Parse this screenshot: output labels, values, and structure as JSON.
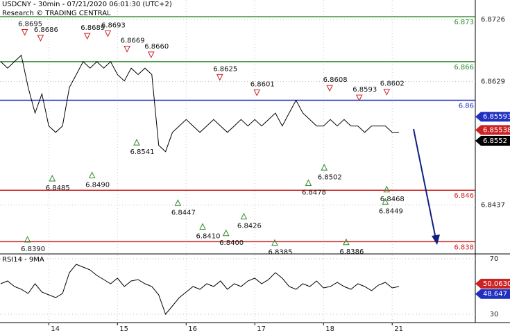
{
  "chart_data": {
    "type": "line",
    "title": "USDCNY - 30min - 07/21/2020 06:01:30 (UTC+2)",
    "subtitle": "Research © TRADING CENTRAL",
    "x": [
      0.3,
      0.4,
      0.5,
      0.6,
      0.7,
      0.8,
      0.9,
      1.0,
      1.1,
      1.2,
      1.3,
      1.4,
      1.5,
      1.6,
      1.7,
      1.8,
      1.9,
      2.0,
      2.1,
      2.2,
      2.3,
      2.4,
      2.5,
      2.6,
      2.7,
      2.8,
      2.9,
      3.0,
      3.1,
      3.2,
      3.3,
      3.4,
      3.5,
      3.6,
      3.7,
      3.8,
      3.9,
      4.0,
      4.1,
      4.2,
      4.3,
      4.4,
      4.5,
      4.6,
      4.7,
      4.8,
      4.9,
      5.0,
      5.1,
      5.2,
      5.3,
      5.4,
      5.5,
      5.6,
      5.7,
      5.8,
      5.9,
      6.0,
      6.1
    ],
    "values": [
      6.866,
      6.865,
      6.866,
      6.867,
      6.862,
      6.858,
      6.861,
      6.856,
      6.855,
      6.856,
      6.862,
      6.864,
      6.866,
      6.865,
      6.866,
      6.865,
      6.866,
      6.864,
      6.863,
      6.865,
      6.864,
      6.865,
      6.864,
      6.853,
      6.852,
      6.855,
      6.856,
      6.857,
      6.856,
      6.855,
      6.856,
      6.857,
      6.856,
      6.855,
      6.856,
      6.857,
      6.856,
      6.857,
      6.856,
      6.857,
      6.858,
      6.856,
      6.858,
      6.86,
      6.858,
      6.857,
      6.856,
      6.856,
      6.857,
      6.856,
      6.857,
      6.856,
      6.856,
      6.855,
      6.856,
      6.856,
      6.856,
      6.855,
      6.855
    ],
    "color": "#000000",
    "xlim": [
      0.29,
      7.21
    ],
    "xticks": [
      {
        "value": 1,
        "label": "14"
      },
      {
        "value": 2,
        "label": "15"
      },
      {
        "value": 3,
        "label": "16"
      },
      {
        "value": 4,
        "label": "17"
      },
      {
        "value": 5,
        "label": "18"
      },
      {
        "value": 6,
        "label": "21"
      }
    ],
    "ylim": [
      6.8362,
      6.8756
    ],
    "yticks": [
      6.8437,
      6.8629,
      6.8726
    ],
    "grid": true,
    "levels": [
      {
        "value": 6.873,
        "color": "#2e8b2e"
      },
      {
        "value": 6.866,
        "color": "#2e8b2e"
      },
      {
        "value": 6.86,
        "color": "#1f2fbf"
      },
      {
        "value": 6.846,
        "color": "#cc2222"
      },
      {
        "value": 6.838,
        "color": "#cc2222"
      }
    ],
    "price_labels": [
      {
        "value": 6.85593,
        "color": "#1f2fbf"
      },
      {
        "value": 6.85538,
        "color": "#cc2222"
      },
      {
        "value": 6.8552,
        "color": "#000000"
      }
    ],
    "annotations": [
      {
        "x": 0.65,
        "value": 6.8695,
        "marker": "down"
      },
      {
        "x": 0.88,
        "value": 6.8686,
        "marker": "down"
      },
      {
        "x": 1.56,
        "value": 6.8689,
        "marker": "down"
      },
      {
        "x": 1.86,
        "value": 6.8693,
        "marker": "down"
      },
      {
        "x": 2.14,
        "value": 6.8669,
        "marker": "down"
      },
      {
        "x": 2.49,
        "value": 6.866,
        "label": "6.8660",
        "marker": "down"
      },
      {
        "x": 3.49,
        "value": 6.8625,
        "marker": "down"
      },
      {
        "x": 4.03,
        "value": 6.8601,
        "marker": "down"
      },
      {
        "x": 5.09,
        "value": 6.8608,
        "marker": "down"
      },
      {
        "x": 5.52,
        "value": 6.8593,
        "marker": "down"
      },
      {
        "x": 5.92,
        "value": 6.8602,
        "marker": "down"
      },
      {
        "x": 0.69,
        "value": 6.839,
        "label": "6.8390",
        "marker": "up"
      },
      {
        "x": 1.05,
        "value": 6.8485,
        "marker": "up"
      },
      {
        "x": 1.63,
        "value": 6.849,
        "label": "6.8490",
        "marker": "up"
      },
      {
        "x": 2.28,
        "value": 6.8541,
        "marker": "up"
      },
      {
        "x": 2.88,
        "value": 6.8447,
        "marker": "up"
      },
      {
        "x": 3.24,
        "value": 6.841,
        "label": "6.8410",
        "marker": "up"
      },
      {
        "x": 3.58,
        "value": 6.84,
        "label": "6.8400",
        "marker": "up"
      },
      {
        "x": 3.84,
        "value": 6.8426,
        "marker": "up"
      },
      {
        "x": 4.29,
        "value": 6.8385,
        "marker": "up"
      },
      {
        "x": 4.78,
        "value": 6.8478,
        "marker": "up"
      },
      {
        "x": 5.01,
        "value": 6.8502,
        "marker": "up"
      },
      {
        "x": 5.33,
        "value": 6.8386,
        "marker": "up"
      },
      {
        "x": 5.92,
        "value": 6.8468,
        "marker": "up"
      },
      {
        "x": 5.9,
        "value": 6.8449,
        "marker": "up"
      }
    ],
    "rsi": {
      "title": "RSI14 - 9MA",
      "ylim": [
        24,
        72.5
      ],
      "yticks": [
        30,
        70
      ],
      "color": "#000000",
      "values": [
        52,
        54,
        50,
        48,
        45,
        52,
        46,
        44,
        42,
        45,
        60,
        66,
        64,
        62,
        58,
        55,
        52,
        56,
        50,
        54,
        55,
        52,
        50,
        44,
        30,
        36,
        42,
        46,
        50,
        48,
        52,
        50,
        54,
        48,
        52,
        50,
        54,
        56,
        52,
        55,
        60,
        56,
        50,
        48,
        52,
        50,
        54,
        49,
        50,
        53,
        50,
        48,
        52,
        50,
        47,
        51,
        53,
        49,
        50
      ],
      "last_labels": [
        {
          "value": 50.063,
          "label": "50.0630",
          "color": "#cc2222"
        },
        {
          "value": 48.647,
          "color": "#1f2fbf"
        }
      ]
    }
  }
}
